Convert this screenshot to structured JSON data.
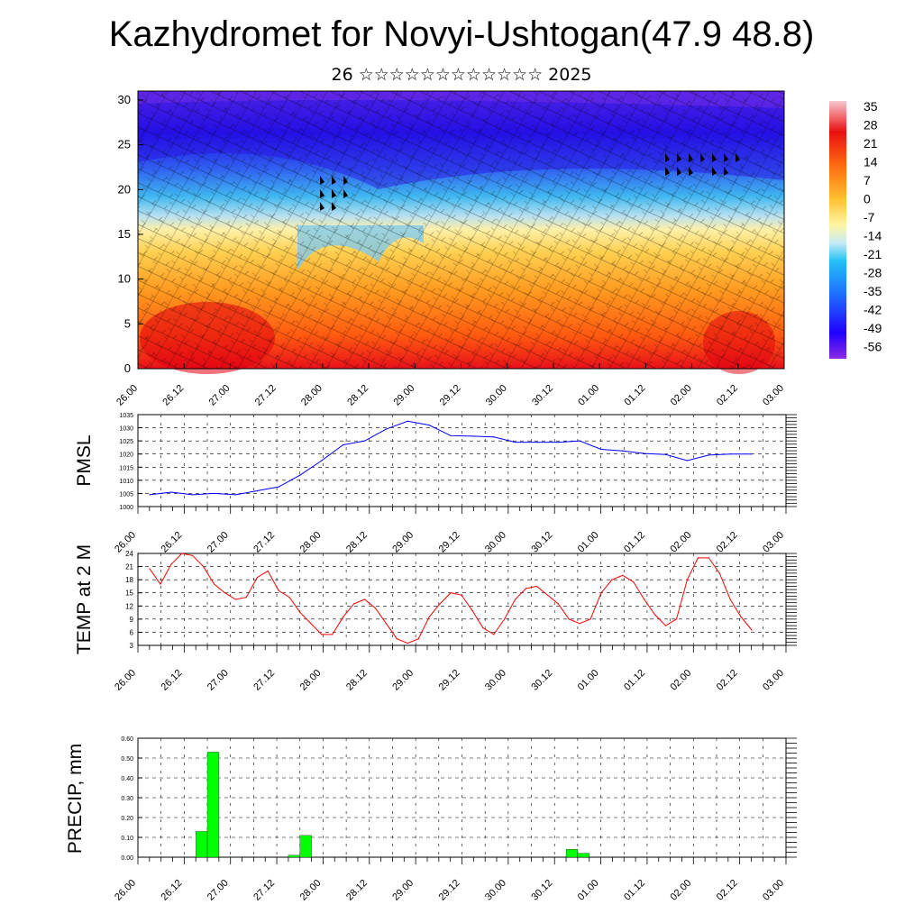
{
  "title": "Kazhydromet for Novyi-Ushtogan(47.9 48.8)",
  "subtitle": "26 ☆☆☆☆☆☆☆☆☆☆☆☆ 2025",
  "colorbar": {
    "labels": [
      "35",
      "28",
      "21",
      "14",
      "7",
      "0",
      "-7",
      "-14",
      "-21",
      "-28",
      "-35",
      "-42",
      "-49",
      "-56"
    ]
  },
  "time_labels": [
    "26.00",
    "26.12",
    "27.00",
    "27.12",
    "28.00",
    "28.12",
    "29.00",
    "29.12",
    "30.00",
    "30.12",
    "01.00",
    "01.12",
    "02.00",
    "02.12",
    "03.00"
  ],
  "chart_data": [
    {
      "type": "heatmap",
      "description_x": "forecast time (day.hour)",
      "x": [
        "26.00",
        "26.12",
        "27.00",
        "27.12",
        "28.00",
        "28.12",
        "29.00",
        "29.12",
        "30.00",
        "30.12",
        "01.00",
        "01.12",
        "02.00",
        "02.12",
        "03.00"
      ],
      "yticks": [
        0,
        5,
        10,
        15,
        20,
        25,
        30
      ],
      "ylim": [
        0,
        31
      ],
      "color_range": [
        -56,
        35
      ],
      "colorbar_ticks": [
        35,
        28,
        21,
        14,
        7,
        0,
        -7,
        -14,
        -21,
        -28,
        -35,
        -42,
        -49,
        -56
      ]
    },
    {
      "type": "line",
      "ylabel": "PMSL",
      "ylim": [
        1000,
        1035
      ],
      "yticks": [
        1000,
        1005,
        1010,
        1015,
        1020,
        1025,
        1030,
        1035
      ],
      "color": "#0000ff",
      "x": [
        "26.00",
        "26.06",
        "26.12",
        "26.18",
        "27.00",
        "27.06",
        "27.12",
        "27.18",
        "28.00",
        "28.06",
        "28.12",
        "28.18",
        "29.00",
        "29.06",
        "29.12",
        "29.18",
        "30.00",
        "30.06",
        "30.12",
        "30.18",
        "01.00",
        "01.06",
        "01.12",
        "01.18",
        "02.00",
        "02.06",
        "02.12",
        "02.18",
        "03.00"
      ],
      "values": [
        1004.5,
        1005.5,
        1004.5,
        1005,
        1004.5,
        1006,
        1007.5,
        1012,
        1017.5,
        1023.5,
        1025,
        1029.5,
        1032.5,
        1031,
        1027,
        1026.8,
        1026.5,
        1024.5,
        1024.5,
        1024.5,
        1025,
        1021.8,
        1021.2,
        1020.2,
        1019.8,
        1017.5,
        1019.6,
        1020,
        1020
      ]
    },
    {
      "type": "line",
      "ylabel": "TEMP at 2 M",
      "ylim": [
        3,
        24
      ],
      "yticks": [
        3,
        6,
        9,
        12,
        15,
        18,
        21,
        24
      ],
      "color": "#ff0000",
      "x_start": "26.00",
      "x_step_hours": 3,
      "values": [
        20.5,
        17,
        21.5,
        24,
        23.5,
        21,
        17,
        15,
        13.5,
        14,
        18.5,
        20,
        15.5,
        14,
        10.5,
        8,
        5.5,
        5.5,
        9.5,
        12.5,
        13.5,
        11.5,
        8,
        4.5,
        3.5,
        4.5,
        9.5,
        12.5,
        15,
        14.5,
        11,
        7,
        5.5,
        9,
        13.5,
        16,
        16.5,
        14.5,
        12.5,
        9,
        8,
        9,
        15,
        18,
        19,
        17.5,
        13.5,
        10,
        7.5,
        9,
        18,
        23,
        23,
        19.5,
        13.5,
        9.5,
        6.5
      ]
    },
    {
      "type": "bar",
      "ylabel": "PRECIP, mm",
      "ylim": [
        0,
        0.6
      ],
      "yticks": [
        "0.00",
        "0.10",
        "0.20",
        "0.30",
        "0.40",
        "0.50",
        "0.60"
      ],
      "color": "#00ff00",
      "x_start": "26.00",
      "x_step_hours": 3,
      "values": [
        0,
        0,
        0,
        0,
        0,
        0.13,
        0.53,
        0,
        0,
        0,
        0,
        0,
        0,
        0.01,
        0.11,
        0,
        0,
        0,
        0,
        0,
        0,
        0,
        0,
        0,
        0,
        0,
        0,
        0,
        0,
        0,
        0,
        0,
        0,
        0,
        0,
        0,
        0,
        0.04,
        0.02,
        0,
        0,
        0,
        0,
        0,
        0,
        0,
        0,
        0,
        0,
        0,
        0,
        0,
        0,
        0,
        0,
        0,
        0
      ]
    }
  ]
}
